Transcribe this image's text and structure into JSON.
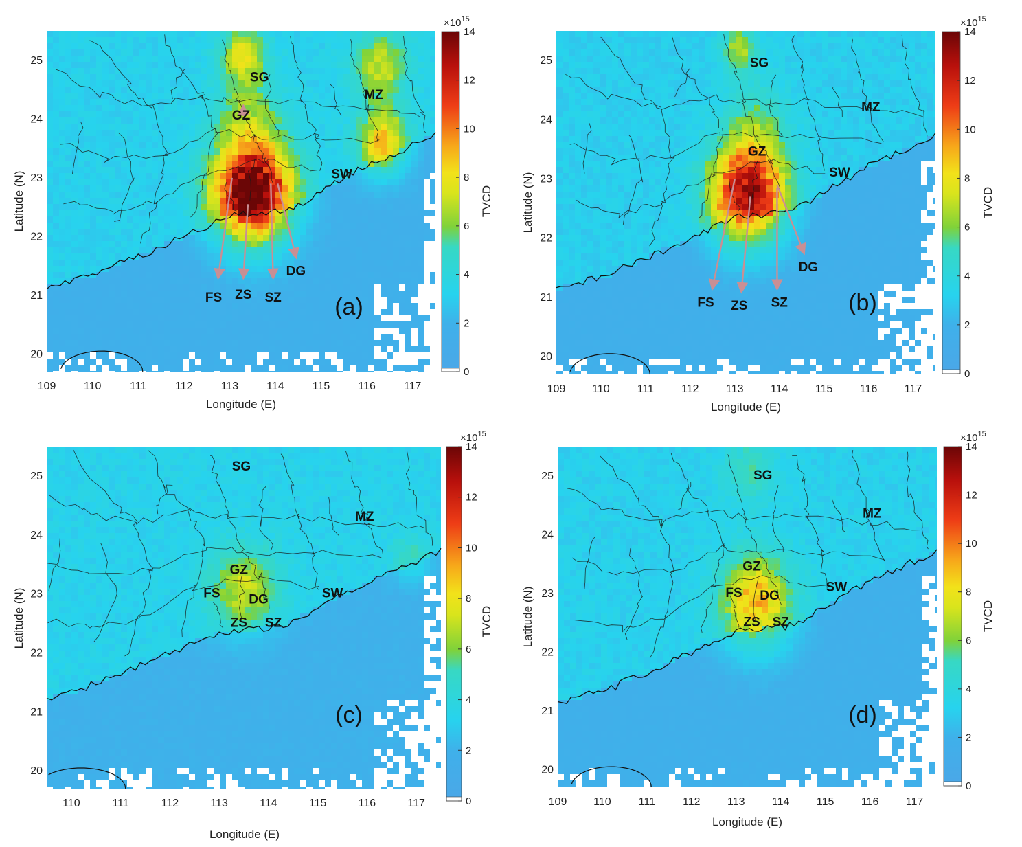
{
  "figure": {
    "colorbar_label": "TVCD",
    "colorbar_multiplier": "×10",
    "colorbar_exponent": "15",
    "xlabel": "Longitude (E)",
    "ylabel": "Latitude (N)",
    "colormap_stops": [
      "#ffffff",
      "#4aa8e8",
      "#27d3ee",
      "#3fe09a",
      "#7fd23a",
      "#f2e21a",
      "#f7a81a",
      "#ee3d16",
      "#b8100c",
      "#6b0606"
    ]
  },
  "chart_data": [
    {
      "type": "heatmap",
      "panel_label": "(a)",
      "xlim": [
        109,
        117.5
      ],
      "ylim": [
        19.7,
        25.5
      ],
      "xticks": [
        "109",
        "110",
        "111",
        "112",
        "113",
        "114",
        "115",
        "116",
        "117"
      ],
      "yticks": [
        "20",
        "21",
        "22",
        "23",
        "24",
        "25"
      ],
      "colorbar_ticks": [
        "0",
        "2",
        "4",
        "6",
        "8",
        "10",
        "12",
        "14"
      ],
      "clim": [
        0,
        14
      ],
      "background_value": 1.6,
      "hotspots": [
        {
          "lon": 113.5,
          "lat": 22.75,
          "peak": 14.0,
          "spread": 0.85
        },
        {
          "lon": 116.35,
          "lat": 23.6,
          "peak": 7.2,
          "spread": 0.55
        },
        {
          "lon": 116.3,
          "lat": 24.9,
          "peak": 5.6,
          "spread": 0.6
        },
        {
          "lon": 113.3,
          "lat": 25.1,
          "peak": 6.0,
          "spread": 0.5
        },
        {
          "lon": 113.4,
          "lat": 24.1,
          "peak": 4.2,
          "spread": 0.7
        }
      ],
      "cities": [
        {
          "code": "SG",
          "lon": 113.65,
          "lat": 24.7
        },
        {
          "code": "GZ",
          "lon": 113.25,
          "lat": 24.05
        },
        {
          "code": "MZ",
          "lon": 116.15,
          "lat": 24.4
        },
        {
          "code": "SW",
          "lon": 115.45,
          "lat": 23.05
        },
        {
          "code": "FS",
          "lon": 112.65,
          "lat": 20.95
        },
        {
          "code": "ZS",
          "lon": 113.3,
          "lat": 21.0
        },
        {
          "code": "SZ",
          "lon": 113.95,
          "lat": 20.95
        },
        {
          "code": "DG",
          "lon": 114.45,
          "lat": 21.4
        }
      ],
      "arrows": [
        {
          "from": [
            113.3,
            24.05
          ],
          "to": [
            113.3,
            24.22
          ]
        },
        {
          "from": [
            113.05,
            23.0
          ],
          "to": [
            112.75,
            21.3
          ]
        },
        {
          "from": [
            113.4,
            22.55
          ],
          "to": [
            113.3,
            21.3
          ]
        },
        {
          "from": [
            113.9,
            22.9
          ],
          "to": [
            113.95,
            21.3
          ]
        },
        {
          "from": [
            114.05,
            22.9
          ],
          "to": [
            114.45,
            21.65
          ]
        }
      ]
    },
    {
      "type": "heatmap",
      "panel_label": "(b)",
      "xlim": [
        109,
        117.5
      ],
      "ylim": [
        19.7,
        25.5
      ],
      "xticks": [
        "109",
        "110",
        "111",
        "112",
        "113",
        "114",
        "115",
        "116",
        "117"
      ],
      "yticks": [
        "20",
        "21",
        "22",
        "23",
        "24",
        "25"
      ],
      "colorbar_ticks": [
        "0",
        "2",
        "4",
        "6",
        "8",
        "10",
        "12",
        "14"
      ],
      "clim": [
        0,
        14
      ],
      "background_value": 1.5,
      "hotspots": [
        {
          "lon": 113.3,
          "lat": 22.75,
          "peak": 11.8,
          "spread": 0.85
        },
        {
          "lon": 113.1,
          "lat": 25.2,
          "peak": 5.0,
          "spread": 0.4
        },
        {
          "lon": 113.5,
          "lat": 24.0,
          "peak": 3.4,
          "spread": 0.7
        }
      ],
      "cities": [
        {
          "code": "SG",
          "lon": 113.55,
          "lat": 24.95
        },
        {
          "code": "GZ",
          "lon": 113.5,
          "lat": 23.45
        },
        {
          "code": "MZ",
          "lon": 116.05,
          "lat": 24.2
        },
        {
          "code": "SW",
          "lon": 115.35,
          "lat": 23.1
        },
        {
          "code": "FS",
          "lon": 112.35,
          "lat": 20.9
        },
        {
          "code": "ZS",
          "lon": 113.1,
          "lat": 20.85
        },
        {
          "code": "SZ",
          "lon": 114.0,
          "lat": 20.9
        },
        {
          "code": "DG",
          "lon": 114.65,
          "lat": 21.5
        }
      ],
      "arrows": [
        {
          "from": [
            113.0,
            23.0
          ],
          "to": [
            112.5,
            21.15
          ]
        },
        {
          "from": [
            113.35,
            22.7
          ],
          "to": [
            113.15,
            21.1
          ]
        },
        {
          "from": [
            113.95,
            22.85
          ],
          "to": [
            113.95,
            21.15
          ]
        },
        {
          "from": [
            113.95,
            22.9
          ],
          "to": [
            114.55,
            21.75
          ]
        }
      ]
    },
    {
      "type": "heatmap",
      "panel_label": "(c)",
      "xlim": [
        109.5,
        117.5
      ],
      "ylim": [
        19.7,
        25.5
      ],
      "xticks": [
        "110",
        "111",
        "112",
        "113",
        "114",
        "115",
        "116",
        "117"
      ],
      "yticks": [
        "20",
        "21",
        "22",
        "23",
        "24",
        "25"
      ],
      "colorbar_ticks": [
        "0",
        "2",
        "4",
        "6",
        "8",
        "10",
        "12",
        "14"
      ],
      "clim": [
        0,
        14
      ],
      "background_value": 1.7,
      "hotspots": [
        {
          "lon": 113.5,
          "lat": 23.1,
          "peak": 5.6,
          "spread": 0.7
        },
        {
          "lon": 116.9,
          "lat": 23.6,
          "peak": 3.6,
          "spread": 0.4
        }
      ],
      "cities": [
        {
          "code": "SG",
          "lon": 113.45,
          "lat": 25.15
        },
        {
          "code": "MZ",
          "lon": 115.95,
          "lat": 24.3
        },
        {
          "code": "GZ",
          "lon": 113.4,
          "lat": 23.4
        },
        {
          "code": "FS",
          "lon": 112.85,
          "lat": 23.0
        },
        {
          "code": "DG",
          "lon": 113.8,
          "lat": 22.9
        },
        {
          "code": "SW",
          "lon": 115.3,
          "lat": 23.0
        },
        {
          "code": "ZS",
          "lon": 113.4,
          "lat": 22.5
        },
        {
          "code": "SZ",
          "lon": 114.1,
          "lat": 22.5
        }
      ],
      "arrows": []
    },
    {
      "type": "heatmap",
      "panel_label": "(d)",
      "xlim": [
        109,
        117.5
      ],
      "ylim": [
        19.7,
        25.5
      ],
      "xticks": [
        "109",
        "110",
        "111",
        "112",
        "113",
        "114",
        "115",
        "116",
        "117"
      ],
      "yticks": [
        "20",
        "21",
        "22",
        "23",
        "24",
        "25"
      ],
      "colorbar_ticks": [
        "0",
        "2",
        "4",
        "6",
        "8",
        "10",
        "12",
        "14"
      ],
      "clim": [
        0,
        14
      ],
      "background_value": 1.6,
      "hotspots": [
        {
          "lon": 113.45,
          "lat": 22.85,
          "peak": 7.6,
          "spread": 0.8
        },
        {
          "lon": 113.3,
          "lat": 25.1,
          "peak": 3.6,
          "spread": 0.6
        }
      ],
      "cities": [
        {
          "code": "SG",
          "lon": 113.6,
          "lat": 25.0
        },
        {
          "code": "MZ",
          "lon": 116.05,
          "lat": 24.35
        },
        {
          "code": "GZ",
          "lon": 113.35,
          "lat": 23.45
        },
        {
          "code": "SW",
          "lon": 115.25,
          "lat": 23.1
        },
        {
          "code": "FS",
          "lon": 112.95,
          "lat": 23.0
        },
        {
          "code": "DG",
          "lon": 113.75,
          "lat": 22.95
        },
        {
          "code": "ZS",
          "lon": 113.35,
          "lat": 22.5
        },
        {
          "code": "SZ",
          "lon": 114.0,
          "lat": 22.5
        }
      ],
      "arrows": []
    }
  ]
}
